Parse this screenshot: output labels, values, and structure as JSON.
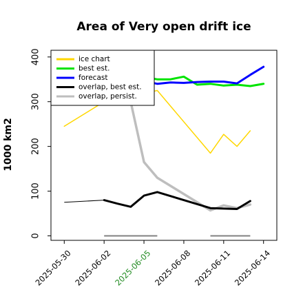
{
  "chart_data": {
    "type": "line",
    "title": "Area of Very open drift ice",
    "xlabel": "",
    "ylabel": "1000 km2",
    "x_dates": [
      "2025-05-29",
      "2025-05-30",
      "2025-05-31",
      "2025-06-01",
      "2025-06-02",
      "2025-06-03",
      "2025-06-04",
      "2025-06-05",
      "2025-06-06",
      "2025-06-07",
      "2025-06-08",
      "2025-06-09",
      "2025-06-10",
      "2025-06-11",
      "2025-06-12",
      "2025-06-13",
      "2025-06-14",
      "2025-06-15"
    ],
    "x_ticks": [
      "2025-05-30",
      "2025-06-02",
      "2025-06-05",
      "2025-06-08",
      "2025-06-11",
      "2025-06-14"
    ],
    "x_tick_colors": [
      "#000000",
      "#000000",
      "#228b22",
      "#000000",
      "#000000",
      "#000000"
    ],
    "xlim": [
      "2025-05-29",
      "2025-06-15"
    ],
    "ylim": [
      -10,
      415
    ],
    "y_ticks": [
      0,
      100,
      200,
      300,
      400
    ],
    "legend_position": "top-left",
    "series": [
      {
        "name": "ice chart",
        "color": "#ffd700",
        "width": 1.5,
        "points": [
          [
            "2025-05-30",
            245
          ],
          [
            "2025-06-02",
            300
          ],
          [
            "2025-06-05",
            318
          ],
          [
            "2025-06-06",
            325
          ],
          [
            "2025-06-10",
            185
          ],
          [
            "2025-06-11",
            227
          ],
          [
            "2025-06-12",
            200
          ],
          [
            "2025-06-13",
            235
          ]
        ]
      },
      {
        "name": "best est.",
        "color": "#00e400",
        "width": 3,
        "points": [
          [
            "2025-06-05",
            355
          ],
          [
            "2025-06-06",
            350
          ],
          [
            "2025-06-07",
            350
          ],
          [
            "2025-06-08",
            356
          ],
          [
            "2025-06-09",
            338
          ],
          [
            "2025-06-10",
            340
          ],
          [
            "2025-06-11",
            336
          ],
          [
            "2025-06-12",
            338
          ],
          [
            "2025-06-13",
            335
          ],
          [
            "2025-06-14",
            340
          ]
        ]
      },
      {
        "name": "forecast",
        "color": "#0000ff",
        "width": 3,
        "points": [
          [
            "2025-06-05",
            346
          ],
          [
            "2025-06-06",
            340
          ],
          [
            "2025-06-07",
            343
          ],
          [
            "2025-06-08",
            342
          ],
          [
            "2025-06-09",
            344
          ],
          [
            "2025-06-10",
            345
          ],
          [
            "2025-06-11",
            345
          ],
          [
            "2025-06-12",
            341
          ],
          [
            "2025-06-13",
            360
          ],
          [
            "2025-06-14",
            378
          ]
        ]
      },
      {
        "name": "overlap, best est.",
        "color": "#000000",
        "width": 3,
        "points": [
          [
            "2025-06-02",
            80
          ],
          [
            "2025-06-03",
            72
          ],
          [
            "2025-06-04",
            65
          ],
          [
            "2025-06-05",
            90
          ],
          [
            "2025-06-06",
            98
          ],
          [
            "2025-06-10",
            62
          ],
          [
            "2025-06-11",
            61
          ],
          [
            "2025-06-12",
            60
          ],
          [
            "2025-06-13",
            78
          ]
        ]
      },
      {
        "name": "overlap, persist.",
        "color": "#bebebe",
        "width": 3.5,
        "points": [
          [
            "2025-06-04",
            300
          ],
          [
            "2025-06-05",
            165
          ],
          [
            "2025-06-06",
            130
          ],
          [
            "2025-06-10",
            57
          ],
          [
            "2025-06-11",
            68
          ],
          [
            "2025-06-12",
            62
          ],
          [
            "2025-06-13",
            70
          ]
        ]
      }
    ],
    "connectors": [
      {
        "color": "#000000",
        "width": 1,
        "points": [
          [
            "2025-05-30",
            75
          ],
          [
            "2025-06-02",
            80
          ]
        ]
      },
      {
        "color": "#000000",
        "width": 1,
        "points": [
          [
            "2025-06-06",
            98
          ],
          [
            "2025-06-10",
            62
          ]
        ]
      },
      {
        "color": "#bebebe",
        "width": 1,
        "points": [
          [
            "2025-06-06",
            130
          ],
          [
            "2025-06-10",
            57
          ]
        ]
      }
    ],
    "zero_bars": [
      {
        "color": "#808080",
        "width": 2,
        "points": [
          [
            "2025-06-02",
            0
          ],
          [
            "2025-06-06",
            0
          ]
        ]
      },
      {
        "color": "#808080",
        "width": 2,
        "points": [
          [
            "2025-06-10",
            0
          ],
          [
            "2025-06-13",
            0
          ]
        ]
      }
    ]
  }
}
